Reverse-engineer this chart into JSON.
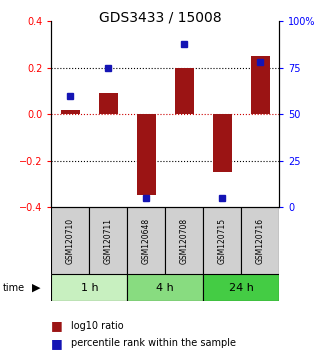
{
  "title": "GDS3433 / 15008",
  "samples": [
    "GSM120710",
    "GSM120711",
    "GSM120648",
    "GSM120708",
    "GSM120715",
    "GSM120716"
  ],
  "log10_ratio": [
    0.02,
    0.09,
    -0.35,
    0.2,
    -0.25,
    0.25
  ],
  "percentile_rank_pct": [
    60,
    75,
    5,
    88,
    5,
    78
  ],
  "ylim_left": [
    -0.4,
    0.4
  ],
  "ylim_right": [
    0,
    100
  ],
  "bar_color": "#9B1414",
  "dot_color": "#1414B4",
  "time_groups": [
    {
      "label": "1 h",
      "start": 0,
      "end": 2,
      "color": "#C8F0C0"
    },
    {
      "label": "4 h",
      "start": 2,
      "end": 4,
      "color": "#88DC80"
    },
    {
      "label": "24 h",
      "start": 4,
      "end": 6,
      "color": "#44CC44"
    }
  ],
  "legend_bar_label": "log10 ratio",
  "legend_dot_label": "percentile rank within the sample",
  "zero_line_color": "#CC0000",
  "dotted_line_color": "#000000",
  "sample_box_color": "#D0D0D0",
  "bar_width": 0.5,
  "dot_marker_size": 4
}
